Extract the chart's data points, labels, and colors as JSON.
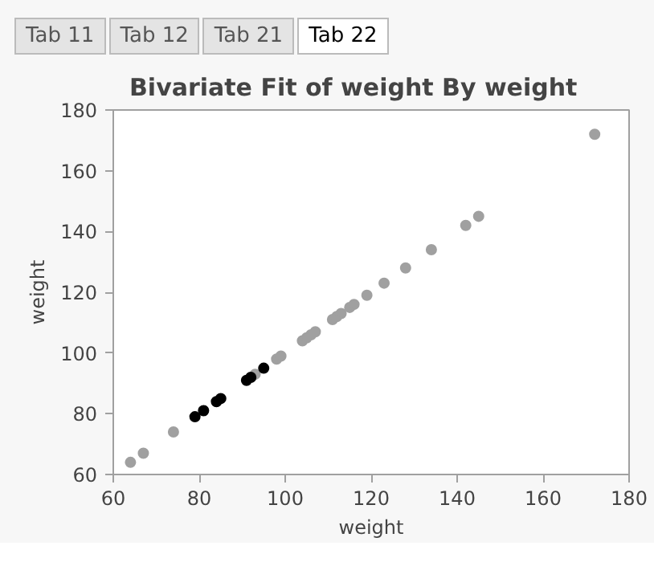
{
  "chart_data": {
    "type": "scatter",
    "title": "Bivariate Fit of weight By weight",
    "xlabel": "weight",
    "ylabel": "weight",
    "annotations": [
      "Tab 11",
      "Tab 12",
      "Tab 21",
      "Tab 22"
    ],
    "series": [
      {
        "color": "#a0a0a0",
        "x": [
          64,
          67,
          74,
          93,
          98,
          99,
          104,
          105,
          106,
          107,
          111,
          112,
          113,
          115,
          116,
          119,
          123,
          128,
          134,
          142,
          145,
          172
        ],
        "values": [
          64,
          67,
          74,
          93,
          98,
          99,
          104,
          105,
          106,
          107,
          111,
          112,
          113,
          115,
          116,
          119,
          123,
          128,
          134,
          142,
          145,
          172
        ]
      },
      {
        "color": "#000000",
        "x": [
          79,
          81,
          84,
          85,
          91,
          92,
          95
        ],
        "values": [
          79,
          81,
          84,
          85,
          91,
          92,
          95
        ]
      }
    ],
    "xlim": [
      60,
      180
    ],
    "ylim": [
      60,
      180
    ],
    "xticks": [
      60,
      80,
      100,
      120,
      140,
      160,
      180
    ],
    "yticks": [
      60,
      80,
      100,
      120,
      140,
      160,
      180
    ],
    "grid": false,
    "marker": "circle"
  }
}
